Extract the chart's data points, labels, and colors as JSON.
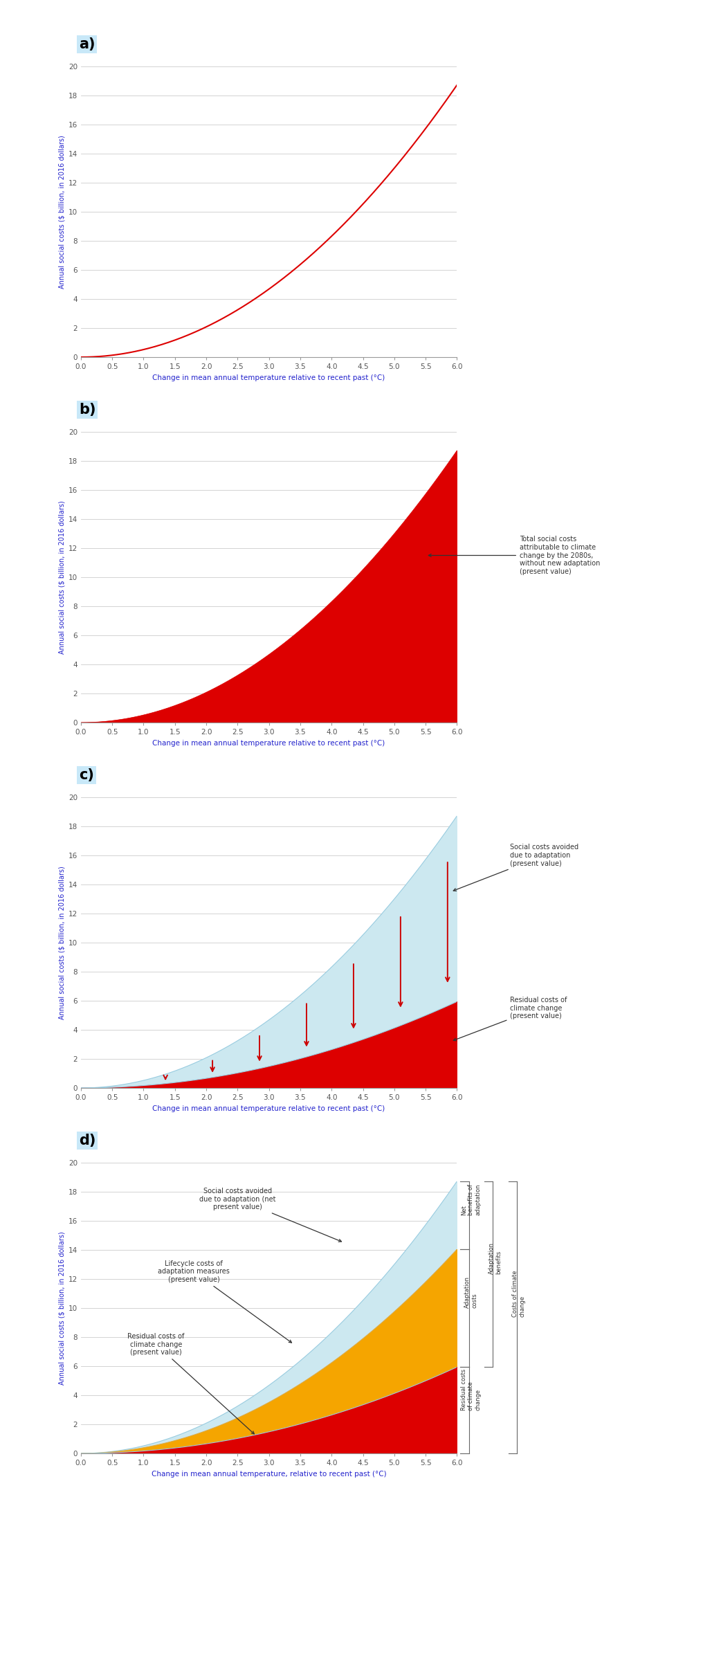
{
  "xlabel": "Change in mean annual temperature relative to recent past (°C)",
  "xlabel_d": "Change in mean annual temperature, relative to recent past (°C)",
  "ylabel": "Annual social costs ($ billion, in 2016 dollars)",
  "ylabel_d": "Annual social costs ($ billion, 2016 dollars)",
  "xlim": [
    0,
    6
  ],
  "ylim": [
    0,
    20
  ],
  "xticks": [
    0.0,
    0.5,
    1.0,
    1.5,
    2.0,
    2.5,
    3.0,
    3.5,
    4.0,
    4.5,
    5.0,
    5.5,
    6.0
  ],
  "yticks": [
    0,
    2,
    4,
    6,
    8,
    10,
    12,
    14,
    16,
    18,
    20
  ],
  "line_color": "#dd0000",
  "fill_color_red": "#dd0000",
  "fill_color_blue": "#cce8f0",
  "fill_color_orange": "#f5a500",
  "axis_label_color": "#2222cc",
  "background_color": "#ffffff",
  "grid_color": "#cccccc",
  "label_a": "a)",
  "label_b": "b)",
  "label_c": "c)",
  "label_d": "d)",
  "label_highlight": "#c8e8f8",
  "annot_b_text": "Total social costs\nattributable to climate\nchange by the 2080s,\nwithout new adaptation\n(present value)",
  "annot_c1_text": "Social costs avoided\ndue to adaptation\n(present value)",
  "annot_c2_text": "Residual costs of\nclimate change\n(present value)",
  "annot_d1_text": "Social costs avoided\ndue to adaptation (net\npresent value)",
  "annot_d2_text": "Lifecycle costs of\nadaptation measures\n(present value)",
  "annot_d3_text": "Residual costs of\nclimate change\n(present value)",
  "arrow_color_c": "#cc0000",
  "arrow_xs_c": [
    1.35,
    2.1,
    2.85,
    3.6,
    4.35,
    5.1,
    5.85
  ],
  "d_right1": "Net\nbenefits of\nadaptation",
  "d_right2": "Adaptation\nbenefits",
  "d_right3": "Adaptation\ncosts",
  "d_right4": "Residual costs\nof climate\nchange",
  "d_right5": "Costs of climate\nchange"
}
